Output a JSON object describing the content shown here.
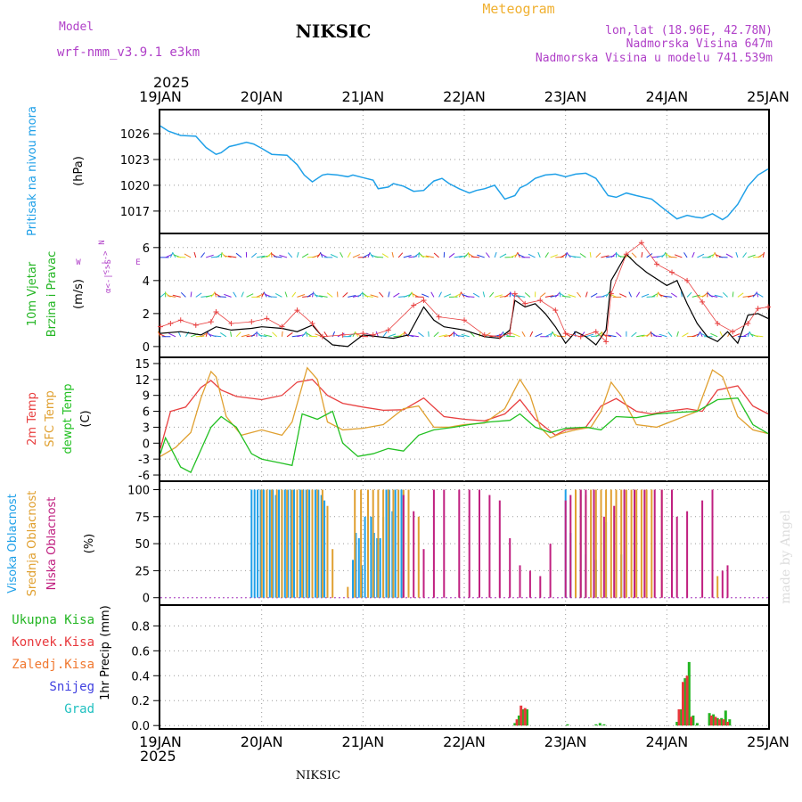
{
  "header": {
    "model_label": "Model",
    "model_name": "wrf-nmm_v3.9.1 e3km",
    "station": "NIKSIC",
    "product": "Meteogram",
    "coords": "lon,lat (18.96E, 42.78N)",
    "elevation": "Nadmorska Visina 647m",
    "model_elevation": "Nadmorska Visina u modelu 741.539m",
    "year_top": "2025",
    "year_bottom": "2025",
    "footer_station": "NIKSIC",
    "watermark": "made by Angel"
  },
  "colors": {
    "pressure": "#1fa0e8",
    "rain_total": "#22b522",
    "rain_convective": "#e8383c",
    "rain_frozen": "#f07830",
    "snow": "#4040e0",
    "hail": "#20c0c0",
    "temp_2m": "#e84040",
    "temp_sfc": "#e0a030",
    "dewpoint": "#22c022",
    "cloud_high": "#1fa0e8",
    "cloud_mid": "#e0a030",
    "cloud_low": "#c02080",
    "label_purple": "#b040c8",
    "label_orange": "#f0b030"
  },
  "chart_data": [
    {
      "panel": "pressure",
      "type": "line",
      "ylabel": [
        "Pritisak na nivou mora",
        "(hPa)"
      ],
      "yticks": [
        1017,
        1020,
        1023,
        1026
      ],
      "ylim": [
        1014.5,
        1028.7
      ],
      "x": [
        0,
        0.08,
        0.2,
        0.35,
        0.45,
        0.55,
        0.6,
        0.68,
        0.75,
        0.85,
        0.92,
        1.0,
        1.1,
        1.25,
        1.35,
        1.42,
        1.5,
        1.6,
        1.65,
        1.75,
        1.85,
        1.9,
        2.0,
        2.1,
        2.15,
        2.25,
        2.3,
        2.4,
        2.5,
        2.6,
        2.7,
        2.78,
        2.85,
        2.95,
        3.05,
        3.12,
        3.2,
        3.3,
        3.4,
        3.5,
        3.55,
        3.62,
        3.7,
        3.8,
        3.9,
        4.0,
        4.1,
        4.2,
        4.3,
        4.42,
        4.5,
        4.6,
        4.7,
        4.85,
        5.0,
        5.1,
        5.2,
        5.28,
        5.35,
        5.45,
        5.55,
        5.6,
        5.7,
        5.8,
        5.9,
        6.0
      ],
      "y": [
        1026.9,
        1026.3,
        1025.8,
        1025.7,
        1024.4,
        1023.6,
        1023.8,
        1024.5,
        1024.7,
        1025.0,
        1024.8,
        1024.3,
        1023.6,
        1023.5,
        1022.4,
        1021.2,
        1020.4,
        1021.2,
        1021.3,
        1021.2,
        1021.0,
        1021.2,
        1020.9,
        1020.6,
        1019.6,
        1019.8,
        1020.2,
        1019.9,
        1019.3,
        1019.4,
        1020.5,
        1020.8,
        1020.2,
        1019.6,
        1019.1,
        1019.4,
        1019.6,
        1020.0,
        1018.4,
        1018.8,
        1019.7,
        1020.1,
        1020.8,
        1021.2,
        1021.3,
        1021.0,
        1021.3,
        1021.4,
        1020.8,
        1018.8,
        1018.6,
        1019.1,
        1018.8,
        1018.4,
        1017.0,
        1016.1,
        1016.5,
        1016.3,
        1016.2,
        1016.7,
        1016.0,
        1016.4,
        1017.8,
        1019.9,
        1021.2,
        1021.9
      ]
    },
    {
      "panel": "wind",
      "type": "line",
      "ylabel": [
        "10m Vjetar",
        "Brzina i Pravac",
        "(m/s)"
      ],
      "compass": [
        "N",
        "<-|->",
        "W",
        "E",
        "α<-|->S"
      ],
      "yticks": [
        0,
        2,
        4,
        6
      ],
      "ylim": [
        -0.6,
        6.8
      ],
      "series": [
        {
          "name": "speed_black",
          "x": [
            0,
            0.2,
            0.4,
            0.55,
            0.7,
            0.9,
            1.0,
            1.2,
            1.35,
            1.5,
            1.6,
            1.7,
            1.85,
            2.0,
            2.15,
            2.3,
            2.45,
            2.6,
            2.7,
            2.8,
            3.0,
            3.2,
            3.35,
            3.45,
            3.5,
            3.6,
            3.7,
            3.8,
            3.9,
            4.0,
            4.1,
            4.2,
            4.3,
            4.4,
            4.45,
            4.6,
            4.7,
            4.8,
            5.0,
            5.1,
            5.2,
            5.3,
            5.4,
            5.5,
            5.6,
            5.7,
            5.8,
            5.9,
            6.0
          ],
          "values": [
            0.8,
            0.9,
            0.7,
            1.2,
            1.0,
            1.1,
            1.2,
            1.1,
            0.9,
            1.3,
            0.6,
            0.1,
            0.0,
            0.7,
            0.6,
            0.5,
            0.7,
            2.4,
            1.6,
            1.2,
            1.0,
            0.6,
            0.5,
            1.0,
            2.8,
            2.4,
            2.6,
            2.0,
            1.2,
            0.2,
            0.9,
            0.6,
            0.1,
            1.0,
            4.0,
            5.6,
            5.0,
            4.5,
            3.7,
            4.0,
            2.6,
            1.4,
            0.6,
            0.3,
            0.9,
            0.2,
            1.9,
            2.0,
            1.7
          ]
        },
        {
          "name": "gust_red",
          "x": [
            0,
            0.1,
            0.2,
            0.35,
            0.5,
            0.55,
            0.7,
            0.9,
            1.05,
            1.2,
            1.35,
            1.5,
            1.6,
            1.8,
            2.0,
            2.1,
            2.25,
            2.5,
            2.6,
            2.75,
            3.0,
            3.2,
            3.35,
            3.45,
            3.5,
            3.6,
            3.75,
            3.9,
            4.0,
            4.15,
            4.3,
            4.4,
            4.45,
            4.6,
            4.75,
            4.9,
            5.05,
            5.2,
            5.35,
            5.5,
            5.65,
            5.8,
            5.9,
            6.0
          ],
          "values": [
            1.2,
            1.4,
            1.6,
            1.3,
            1.5,
            2.1,
            1.4,
            1.5,
            1.7,
            1.2,
            2.2,
            1.4,
            0.6,
            0.7,
            0.8,
            0.7,
            1.0,
            2.5,
            2.8,
            1.8,
            1.6,
            0.7,
            0.6,
            0.8,
            3.2,
            2.6,
            2.8,
            2.2,
            0.8,
            0.6,
            0.9,
            0.3,
            3.2,
            5.6,
            6.3,
            5.0,
            4.5,
            4.0,
            2.7,
            1.4,
            0.9,
            1.4,
            2.3,
            2.4
          ]
        }
      ],
      "barb_rows": [
        {
          "level": 5.4,
          "label": "upper"
        },
        {
          "level": 3.0,
          "label": "middle"
        },
        {
          "level": 0.6,
          "label": "lower"
        }
      ]
    },
    {
      "panel": "temperature",
      "type": "line",
      "ylabel": [
        "2m Temp",
        "SFC Temp",
        "dewpt Temp",
        "(C)"
      ],
      "yticks": [
        -6,
        -3,
        0,
        3,
        6,
        9,
        12,
        15
      ],
      "ylim": [
        -7,
        16
      ],
      "series": [
        {
          "name": "2m Temp",
          "x": [
            0,
            0.1,
            0.25,
            0.4,
            0.5,
            0.6,
            0.75,
            1.0,
            1.2,
            1.35,
            1.5,
            1.65,
            1.8,
            2.0,
            2.2,
            2.4,
            2.6,
            2.8,
            3.0,
            3.2,
            3.4,
            3.55,
            3.7,
            3.9,
            4.0,
            4.2,
            4.35,
            4.5,
            4.7,
            4.85,
            5.0,
            5.2,
            5.35,
            5.5,
            5.7,
            5.85,
            6.0
          ],
          "values": [
            -1,
            6.0,
            6.8,
            10.5,
            11.8,
            10.0,
            8.8,
            8.2,
            9.0,
            11.5,
            12.0,
            9.0,
            7.5,
            6.8,
            6.2,
            6.3,
            8.5,
            5.0,
            4.5,
            4.2,
            5.5,
            8.2,
            4.5,
            1.5,
            2.5,
            3.0,
            7.0,
            8.4,
            6.0,
            5.5,
            6.0,
            6.5,
            6.0,
            10.0,
            10.8,
            7.0,
            5.5
          ]
        },
        {
          "name": "SFC Temp",
          "x": [
            0,
            0.15,
            0.3,
            0.4,
            0.5,
            0.55,
            0.65,
            0.8,
            1.0,
            1.2,
            1.3,
            1.45,
            1.55,
            1.65,
            1.8,
            2.0,
            2.2,
            2.4,
            2.55,
            2.7,
            2.85,
            3.0,
            3.2,
            3.4,
            3.55,
            3.65,
            3.75,
            3.85,
            3.95,
            4.1,
            4.25,
            4.35,
            4.45,
            4.55,
            4.7,
            4.9,
            5.1,
            5.3,
            5.45,
            5.55,
            5.7,
            5.85,
            6.0
          ],
          "values": [
            -2.5,
            -0.8,
            2.0,
            8.5,
            13.5,
            12.5,
            5.0,
            1.5,
            2.5,
            1.5,
            4.0,
            14.2,
            12.0,
            4.0,
            2.5,
            2.8,
            3.5,
            6.5,
            7.0,
            3.0,
            3.0,
            3.5,
            3.8,
            6.5,
            12.0,
            9.0,
            3.0,
            1.0,
            1.8,
            2.5,
            3.0,
            6.0,
            11.5,
            9.0,
            3.5,
            3.0,
            4.5,
            6.0,
            13.8,
            12.5,
            5.0,
            2.5,
            1.8
          ]
        },
        {
          "name": "dewpt Temp",
          "x": [
            0,
            0.05,
            0.2,
            0.3,
            0.5,
            0.6,
            0.75,
            0.9,
            1.0,
            1.2,
            1.3,
            1.4,
            1.55,
            1.7,
            1.8,
            1.95,
            2.1,
            2.25,
            2.4,
            2.55,
            2.7,
            2.9,
            3.05,
            3.25,
            3.45,
            3.55,
            3.7,
            3.85,
            4.0,
            4.2,
            4.35,
            4.5,
            4.7,
            4.9,
            5.1,
            5.3,
            5.5,
            5.7,
            5.85,
            6.0
          ],
          "values": [
            -2,
            1.0,
            -4.5,
            -5.5,
            3.0,
            5.0,
            3.0,
            -2.0,
            -3.0,
            -3.8,
            -4.2,
            5.5,
            4.5,
            6.0,
            0.0,
            -2.5,
            -2.0,
            -1.0,
            -1.5,
            1.5,
            2.5,
            3.0,
            3.5,
            4.0,
            4.3,
            5.5,
            3.0,
            2.0,
            2.8,
            3.0,
            2.5,
            5.0,
            4.8,
            5.5,
            5.8,
            6.0,
            8.2,
            8.5,
            3.5,
            1.8
          ]
        }
      ]
    },
    {
      "panel": "cloud_cover",
      "type": "bar",
      "ylabel": [
        "Visoka Oblacnost",
        "Srednja Oblacnost",
        "Niska Oblacnost",
        "(%)"
      ],
      "yticks": [
        0,
        25,
        50,
        75,
        100
      ],
      "ylim": [
        -6,
        107
      ],
      "series": [
        {
          "name": "Visoka Oblacnost",
          "x": [
            0.9,
            0.93,
            0.96,
            0.99,
            1.02,
            1.05,
            1.08,
            1.11,
            1.14,
            1.17,
            1.2,
            1.23,
            1.26,
            1.29,
            1.32,
            1.35,
            1.38,
            1.41,
            1.44,
            1.47,
            1.5,
            1.53,
            1.56,
            1.59,
            1.62,
            1.65,
            1.9,
            1.93,
            1.96,
            1.99,
            2.02,
            2.05,
            2.08,
            2.11,
            2.14,
            2.17,
            2.2,
            2.23,
            2.26,
            2.29,
            2.32,
            2.35,
            2.38,
            4.0,
            4.05,
            4.1,
            4.15,
            4.2,
            4.3,
            4.4,
            4.5,
            4.55
          ],
          "values": [
            100,
            100,
            100,
            100,
            100,
            100,
            100,
            100,
            95,
            100,
            100,
            100,
            100,
            100,
            100,
            100,
            100,
            100,
            100,
            100,
            100,
            100,
            100,
            95,
            90,
            80,
            35,
            60,
            55,
            30,
            75,
            100,
            75,
            60,
            55,
            55,
            75,
            100,
            100,
            80,
            100,
            100,
            100,
            100,
            60,
            60,
            100,
            40,
            35,
            70,
            90,
            40
          ]
        },
        {
          "name": "Srednja Oblacnost",
          "x": [
            1.0,
            1.05,
            1.1,
            1.15,
            1.2,
            1.25,
            1.3,
            1.35,
            1.4,
            1.45,
            1.5,
            1.55,
            1.6,
            1.65,
            1.7,
            1.85,
            1.92,
            1.98,
            2.05,
            2.1,
            2.15,
            2.2,
            2.25,
            2.3,
            2.35,
            2.4,
            2.45,
            2.55,
            4.1,
            4.15,
            4.2,
            4.25,
            4.3,
            4.35,
            4.4,
            4.45,
            4.5,
            4.55,
            4.6,
            4.65,
            4.7,
            4.75,
            4.8,
            4.85,
            4.95,
            5.5
          ],
          "values": [
            100,
            100,
            100,
            100,
            100,
            100,
            100,
            100,
            100,
            100,
            100,
            100,
            100,
            85,
            45,
            10,
            100,
            100,
            100,
            100,
            100,
            100,
            100,
            100,
            100,
            100,
            100,
            75,
            100,
            100,
            95,
            100,
            100,
            100,
            100,
            100,
            100,
            100,
            100,
            100,
            100,
            100,
            100,
            100,
            100,
            20
          ]
        },
        {
          "name": "Niska Oblacnost",
          "x": [
            2.4,
            2.5,
            2.6,
            2.7,
            2.8,
            2.95,
            3.05,
            3.15,
            3.25,
            3.35,
            3.45,
            3.55,
            3.65,
            3.75,
            3.85,
            4.0,
            4.05,
            4.15,
            4.2,
            4.28,
            4.38,
            4.48,
            4.58,
            4.68,
            4.78,
            4.88,
            4.95,
            5.05,
            5.1,
            5.2,
            5.35,
            5.45,
            5.55,
            5.6
          ],
          "values": [
            95,
            80,
            45,
            100,
            100,
            100,
            100,
            100,
            95,
            90,
            55,
            30,
            25,
            20,
            50,
            90,
            95,
            100,
            100,
            100,
            75,
            85,
            100,
            100,
            100,
            100,
            100,
            100,
            75,
            80,
            90,
            100,
            25,
            30
          ]
        }
      ]
    },
    {
      "panel": "precipitation",
      "type": "bar",
      "ylabel": [
        "1hr Precip",
        "(mm)"
      ],
      "yticks": [
        0.0,
        0.2,
        0.4,
        0.6,
        0.8
      ],
      "ylim": [
        -0.02,
        0.96
      ],
      "legend": [
        "Ukupna Kisa",
        "Konvek.Kisa",
        "Zaledj.Kisa",
        "Snijeg",
        "Grad"
      ],
      "series": [
        {
          "name": "Ukupna Kisa",
          "x": [
            3.5,
            3.54,
            3.58,
            3.62,
            4.02,
            4.3,
            4.34,
            4.38,
            5.1,
            5.14,
            5.18,
            5.22,
            5.26,
            5.3,
            5.42,
            5.46,
            5.5,
            5.54,
            5.58,
            5.62
          ],
          "values": [
            0.02,
            0.08,
            0.13,
            0.13,
            0.01,
            0.01,
            0.02,
            0.01,
            0.03,
            0.13,
            0.38,
            0.51,
            0.08,
            0.02,
            0.1,
            0.09,
            0.06,
            0.06,
            0.12,
            0.05
          ]
        },
        {
          "name": "Konvek.Kisa",
          "x": [
            3.52,
            3.56,
            3.6,
            5.12,
            5.16,
            5.2,
            5.24,
            5.44,
            5.48,
            5.52,
            5.56,
            5.6
          ],
          "values": [
            0.05,
            0.16,
            0.14,
            0.13,
            0.35,
            0.4,
            0.07,
            0.08,
            0.07,
            0.05,
            0.05,
            0.03
          ]
        }
      ]
    }
  ],
  "x_axis": {
    "top_labels": [
      "19JAN",
      "20JAN",
      "21JAN",
      "22JAN",
      "23JAN",
      "24JAN",
      "25JAN"
    ],
    "bottom_labels": [
      "19JAN",
      "20JAN",
      "21JAN",
      "22JAN",
      "23JAN",
      "24JAN",
      "25JAN"
    ],
    "range_days": [
      0,
      6
    ]
  }
}
